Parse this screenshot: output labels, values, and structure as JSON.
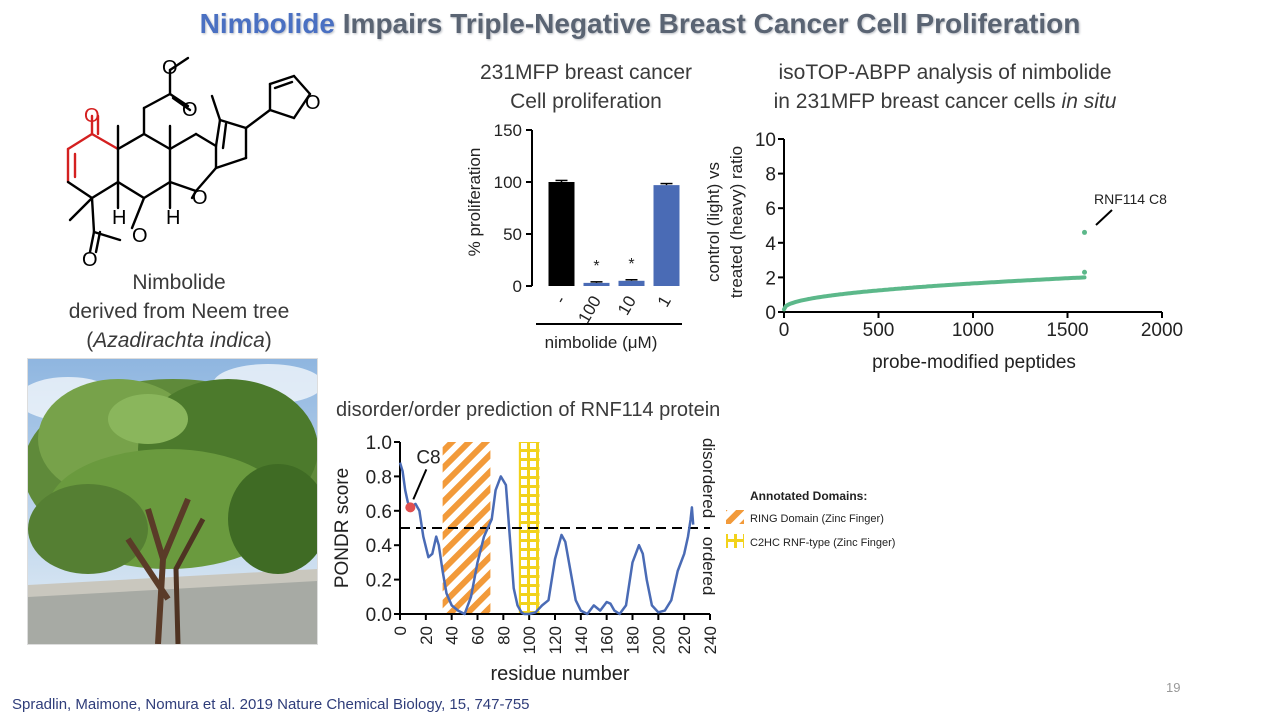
{
  "slide": {
    "title_highlight": "Nimbolide",
    "title_rest": "Impairs Triple-Negative Breast Cancer Cell Proliferation",
    "molecule": {
      "caption_line1": "Nimbolide",
      "caption_line2": "derived from Neem tree",
      "caption_paren_open": "(",
      "caption_latin": "Azadirachta indica",
      "caption_paren_close": ")",
      "atoms": {
        "o1": "O",
        "o2": "O",
        "o3": "O",
        "o4": "O",
        "o5": "O",
        "o6": "O",
        "o7": "O",
        "h1": "H",
        "h2": "H"
      }
    },
    "citation": "Spradlin, Maimone, Nomura et al. 2019 Nature Chemical Biology, 15, 747-755",
    "page_number": "19",
    "colors": {
      "accent": "#4a70c2",
      "bar_control": "#000000",
      "bar_treated": "#4a6bb5",
      "scatter": "#5cb88a",
      "line": "#4a6bb5",
      "ring": "#f29a3a",
      "c2hc": "#f2d21b",
      "c8_dot": "#e05050"
    }
  },
  "chart_data": [
    {
      "type": "bar",
      "title_line1": "231MFP breast cancer",
      "title_line2": "Cell proliferation",
      "ylabel": "% proliferation",
      "xlabel": "nimbolide (μM)",
      "ylim": [
        0,
        150
      ],
      "yticks": [
        0,
        50,
        100,
        150
      ],
      "categories": [
        "-",
        "100",
        "10",
        "1"
      ],
      "values": [
        100,
        3,
        5,
        97
      ],
      "errors": [
        1.5,
        1,
        1,
        1.5
      ],
      "significance": [
        "",
        "*",
        "*",
        ""
      ]
    },
    {
      "type": "scatter",
      "title_line1": "isoTOP-ABPP analysis of nimbolide",
      "title_line2_prefix": "in 231MFP breast cancer cells ",
      "title_line2_italic": "in situ",
      "ylabel_line1": "control (light) vs",
      "ylabel_line2": "treated (heavy) ratio",
      "xlabel": "probe-modified peptides",
      "xlim": [
        0,
        2000
      ],
      "ylim": [
        0,
        10
      ],
      "xticks": [
        0,
        500,
        1000,
        1500,
        2000
      ],
      "yticks": [
        0,
        2,
        4,
        6,
        8,
        10
      ],
      "n_points": 1590,
      "start_value": 0.15,
      "end_value": 2.0,
      "outliers": [
        {
          "x": 1590,
          "y": 4.6
        },
        {
          "x": 1590,
          "y": 2.3
        }
      ],
      "annotation": "RNF114 C8"
    },
    {
      "type": "line",
      "title": "disorder/order prediction of RNF114 protein",
      "ylabel": "PONDR score",
      "xlabel": "residue number",
      "xlim": [
        0,
        240
      ],
      "ylim": [
        0,
        1.0
      ],
      "xticks": [
        0,
        20,
        40,
        60,
        80,
        100,
        120,
        140,
        160,
        180,
        200,
        220,
        240
      ],
      "yticks": [
        0.0,
        0.2,
        0.4,
        0.6,
        0.8,
        1.0
      ],
      "threshold": 0.5,
      "right_label_top": "disordered",
      "right_label_bottom": "ordered",
      "x": [
        0,
        2,
        4,
        6,
        8,
        10,
        12,
        15,
        18,
        22,
        25,
        28,
        30,
        33,
        36,
        40,
        45,
        50,
        55,
        60,
        65,
        68,
        71,
        74,
        78,
        82,
        85,
        88,
        91,
        94,
        96,
        100,
        105,
        110,
        115,
        120,
        125,
        128,
        132,
        136,
        140,
        145,
        150,
        155,
        160,
        163,
        166,
        170,
        175,
        180,
        185,
        188,
        191,
        195,
        200,
        205,
        210,
        215,
        220,
        223,
        225,
        226,
        227
      ],
      "y": [
        0.88,
        0.83,
        0.72,
        0.65,
        0.62,
        0.63,
        0.64,
        0.6,
        0.45,
        0.33,
        0.35,
        0.45,
        0.4,
        0.25,
        0.12,
        0.05,
        0.02,
        0.0,
        0.1,
        0.3,
        0.45,
        0.5,
        0.55,
        0.72,
        0.8,
        0.75,
        0.45,
        0.15,
        0.05,
        0.01,
        0.0,
        0.0,
        0.01,
        0.05,
        0.08,
        0.32,
        0.46,
        0.42,
        0.25,
        0.08,
        0.02,
        0.0,
        0.05,
        0.02,
        0.07,
        0.06,
        0.02,
        0.0,
        0.05,
        0.3,
        0.4,
        0.35,
        0.2,
        0.05,
        0.01,
        0.02,
        0.08,
        0.25,
        0.35,
        0.45,
        0.55,
        0.62,
        0.52
      ],
      "highlight_point": {
        "x": 8,
        "y": 0.62,
        "label": "C8"
      },
      "domains": [
        {
          "name": "RING Domain (Zinc Finger)",
          "start": 33,
          "end": 70,
          "pattern": "hatch"
        },
        {
          "name": "C2HC RNF-type (Zinc Finger)",
          "start": 92,
          "end": 108,
          "pattern": "grid"
        }
      ],
      "legend_title": "Annotated Domains:"
    }
  ]
}
